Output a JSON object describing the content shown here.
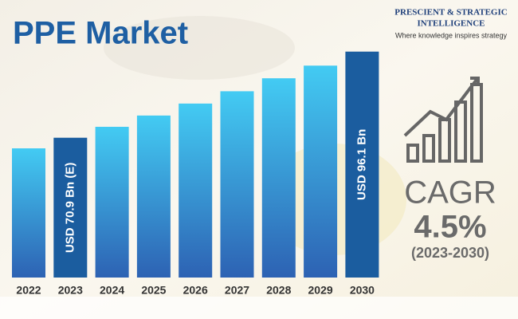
{
  "chart_data": {
    "type": "bar",
    "title": "PPE Market",
    "categories": [
      "2022",
      "2023",
      "2024",
      "2025",
      "2026",
      "2027",
      "2028",
      "2029",
      "2030"
    ],
    "values": [
      67.8,
      70.9,
      74.1,
      77.4,
      80.9,
      84.5,
      88.3,
      92.0,
      96.1
    ],
    "value_labels": [
      null,
      "USD 70.9 Bn (E)",
      null,
      null,
      null,
      null,
      null,
      null,
      "USD 96.1 Bn"
    ],
    "color": "#3fc4ee",
    "highlight_color": "#1b5d9f",
    "ylim": [
      30,
      100
    ],
    "logo": {
      "line1": "PRESCIENT & STRATEGIC",
      "line2": "INTELLIGENCE",
      "tagline": "Where knowledge inspires strategy"
    },
    "cagr": {
      "label": "CAGR",
      "value": "4.5%",
      "period": "(2023-2030)"
    }
  }
}
